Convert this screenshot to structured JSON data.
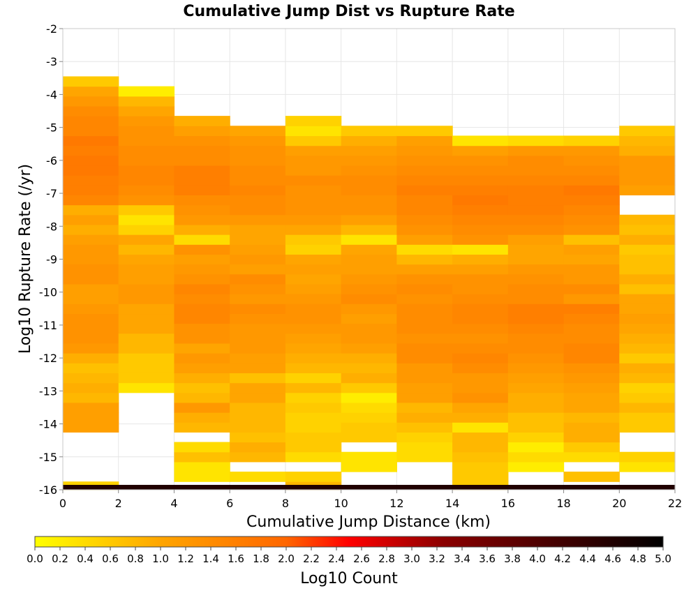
{
  "chart_data": {
    "type": "heatmap",
    "title": "Cumulative Jump Dist vs Rupture Rate",
    "xlabel": "Cumulative Jump Distance (km)",
    "ylabel": "Log10 Rupture Rate (/yr)",
    "colorbar_label": "Log10 Count",
    "xlim": [
      0,
      22
    ],
    "ylim": [
      -16,
      -2
    ],
    "x_ticks": [
      0,
      2,
      4,
      6,
      8,
      10,
      12,
      14,
      16,
      18,
      20,
      22
    ],
    "y_ticks": [
      -16,
      -15,
      -14,
      -13,
      -12,
      -11,
      -10,
      -9,
      -8,
      -7,
      -6,
      -5,
      -4,
      -3,
      -2
    ],
    "colorbar_range": [
      0.0,
      5.0
    ],
    "colorbar_ticks": [
      "0.0",
      "0.2",
      "0.4",
      "0.6",
      "0.8",
      "1.0",
      "1.2",
      "1.4",
      "1.6",
      "1.8",
      "2.0",
      "2.2",
      "2.4",
      "2.6",
      "2.8",
      "3.0",
      "3.2",
      "3.4",
      "3.6",
      "3.8",
      "4.0",
      "4.2",
      "4.4",
      "4.6",
      "4.8",
      "5.0"
    ],
    "colormap": [
      "#ffff00",
      "#ffa500",
      "#ff6600",
      "#ff0000",
      "#8b0000",
      "#000000"
    ],
    "grid": true,
    "x_bin_width": 2,
    "y_bin_height": 0.3,
    "y_bin_start": -16.05,
    "bottom_row": [
      4.6,
      4.6,
      4.6,
      4.6,
      4.6,
      4.6,
      4.6,
      4.6,
      4.6,
      4.6,
      4.6
    ],
    "columns": [
      [
        0.5,
        null,
        null,
        null,
        null,
        null,
        1.1,
        1.1,
        1.1,
        0.8,
        0.9,
        0.8,
        0.7,
        0.9,
        1.2,
        1.3,
        1.3,
        1.3,
        1.2,
        1.1,
        1.1,
        1.3,
        1.3,
        1.2,
        1.2,
        1.1,
        0.9,
        1.1,
        0.9,
        1.5,
        1.6,
        1.6,
        1.7,
        1.7,
        1.6,
        1.7,
        1.5,
        1.5,
        1.4,
        1.2,
        1.0,
        0.6
      ],
      [
        null,
        null,
        null,
        null,
        null,
        null,
        null,
        null,
        null,
        null,
        0.3,
        0.6,
        0.6,
        0.6,
        0.8,
        0.8,
        1.0,
        1.0,
        1.0,
        1.2,
        1.2,
        1.1,
        1.1,
        1.0,
        0.8,
        1.0,
        0.5,
        0.3,
        0.6,
        1.3,
        1.4,
        1.5,
        1.5,
        1.4,
        1.4,
        1.3,
        1.3,
        1.2,
        1.0,
        0.8,
        0.2
      ],
      [
        null,
        0.3,
        0.3,
        0.7,
        0.4,
        null,
        0.8,
        0.9,
        1.2,
        0.8,
        0.7,
        0.9,
        1.1,
        1.2,
        1.0,
        1.3,
        1.3,
        1.5,
        1.5,
        1.4,
        1.5,
        1.3,
        1.2,
        1.1,
        1.3,
        0.4,
        0.9,
        1.2,
        1.3,
        1.4,
        1.6,
        1.6,
        1.6,
        1.4,
        1.4,
        1.3,
        1.1,
        0.9
      ],
      [
        null,
        0.4,
        null,
        0.8,
        0.9,
        0.7,
        0.8,
        0.8,
        0.8,
        1.0,
        1.0,
        0.7,
        1.1,
        1.1,
        1.2,
        1.2,
        1.2,
        1.3,
        1.4,
        1.2,
        1.3,
        1.4,
        1.1,
        1.2,
        1.1,
        1.0,
        1.0,
        1.2,
        1.4,
        1.4,
        1.5,
        1.4,
        1.4,
        1.3,
        1.3,
        1.2,
        1.0
      ],
      [
        0.8,
        0.5,
        null,
        0.4,
        0.6,
        0.6,
        0.5,
        0.5,
        0.6,
        0.5,
        0.8,
        0.5,
        0.8,
        0.9,
        1.0,
        1.1,
        1.2,
        1.3,
        1.3,
        1.2,
        1.1,
        1.0,
        1.1,
        1.0,
        0.5,
        0.6,
        1.0,
        1.2,
        1.3,
        1.3,
        1.3,
        1.4,
        1.2,
        1.2,
        1.1,
        0.6,
        0.3,
        0.5
      ],
      [
        null,
        null,
        0.3,
        0.3,
        null,
        0.6,
        0.6,
        0.5,
        0.4,
        0.2,
        0.6,
        0.9,
        0.8,
        0.9,
        1.1,
        1.2,
        1.2,
        1.1,
        1.2,
        1.4,
        1.3,
        1.2,
        1.1,
        1.1,
        1.0,
        0.3,
        0.8,
        1.1,
        1.3,
        1.3,
        1.4,
        1.4,
        1.3,
        1.2,
        1.1,
        0.9,
        0.6
      ],
      [
        null,
        null,
        null,
        0.4,
        0.4,
        0.5,
        0.7,
        0.9,
        0.8,
        1.1,
        1.1,
        1.2,
        1.2,
        1.4,
        1.4,
        1.3,
        1.4,
        1.4,
        1.4,
        1.3,
        1.4,
        1.3,
        1.1,
        0.8,
        0.4,
        1.1,
        1.3,
        1.4,
        1.5,
        1.5,
        1.6,
        1.5,
        1.4,
        1.3,
        1.2,
        1.1,
        0.6
      ],
      [
        0.6,
        0.6,
        0.6,
        0.7,
        0.8,
        0.8,
        0.3,
        0.9,
        1.0,
        1.3,
        1.2,
        1.2,
        1.4,
        1.5,
        1.4,
        1.3,
        1.4,
        1.5,
        1.5,
        1.4,
        1.3,
        1.3,
        1.1,
        0.9,
        0.3,
        1.3,
        1.4,
        1.5,
        1.6,
        1.7,
        1.6,
        1.5,
        1.4,
        1.3,
        1.1,
        0.3
      ],
      [
        null,
        null,
        0.2,
        0.4,
        0.2,
        0.5,
        0.7,
        0.7,
        0.9,
        0.9,
        1.0,
        1.1,
        1.2,
        1.3,
        1.4,
        1.4,
        1.5,
        1.6,
        1.6,
        1.4,
        1.4,
        1.3,
        1.2,
        1.0,
        1.0,
        1.1,
        1.4,
        1.5,
        1.6,
        1.6,
        1.6,
        1.5,
        1.4,
        1.4,
        1.2,
        0.4
      ],
      [
        null,
        0.7,
        null,
        0.4,
        0.6,
        0.9,
        0.9,
        0.8,
        1.0,
        1.0,
        1.1,
        1.2,
        1.3,
        1.5,
        1.5,
        1.4,
        1.4,
        1.5,
        1.6,
        1.2,
        1.4,
        1.2,
        1.2,
        1.0,
        1.1,
        0.7,
        1.3,
        1.4,
        1.5,
        1.6,
        1.7,
        1.5,
        1.4,
        1.3,
        1.2,
        0.5
      ],
      [
        null,
        null,
        0.3,
        0.5,
        null,
        null,
        0.6,
        0.6,
        0.8,
        0.6,
        0.5,
        0.8,
        0.9,
        0.6,
        0.8,
        0.9,
        1.0,
        1.1,
        1.0,
        1.0,
        0.7,
        0.9,
        0.7,
        0.7,
        0.6,
        0.9,
        0.7,
        0.8,
        null,
        null,
        1.1,
        1.2,
        1.2,
        1.2,
        0.9,
        0.8,
        0.6
      ]
    ]
  }
}
